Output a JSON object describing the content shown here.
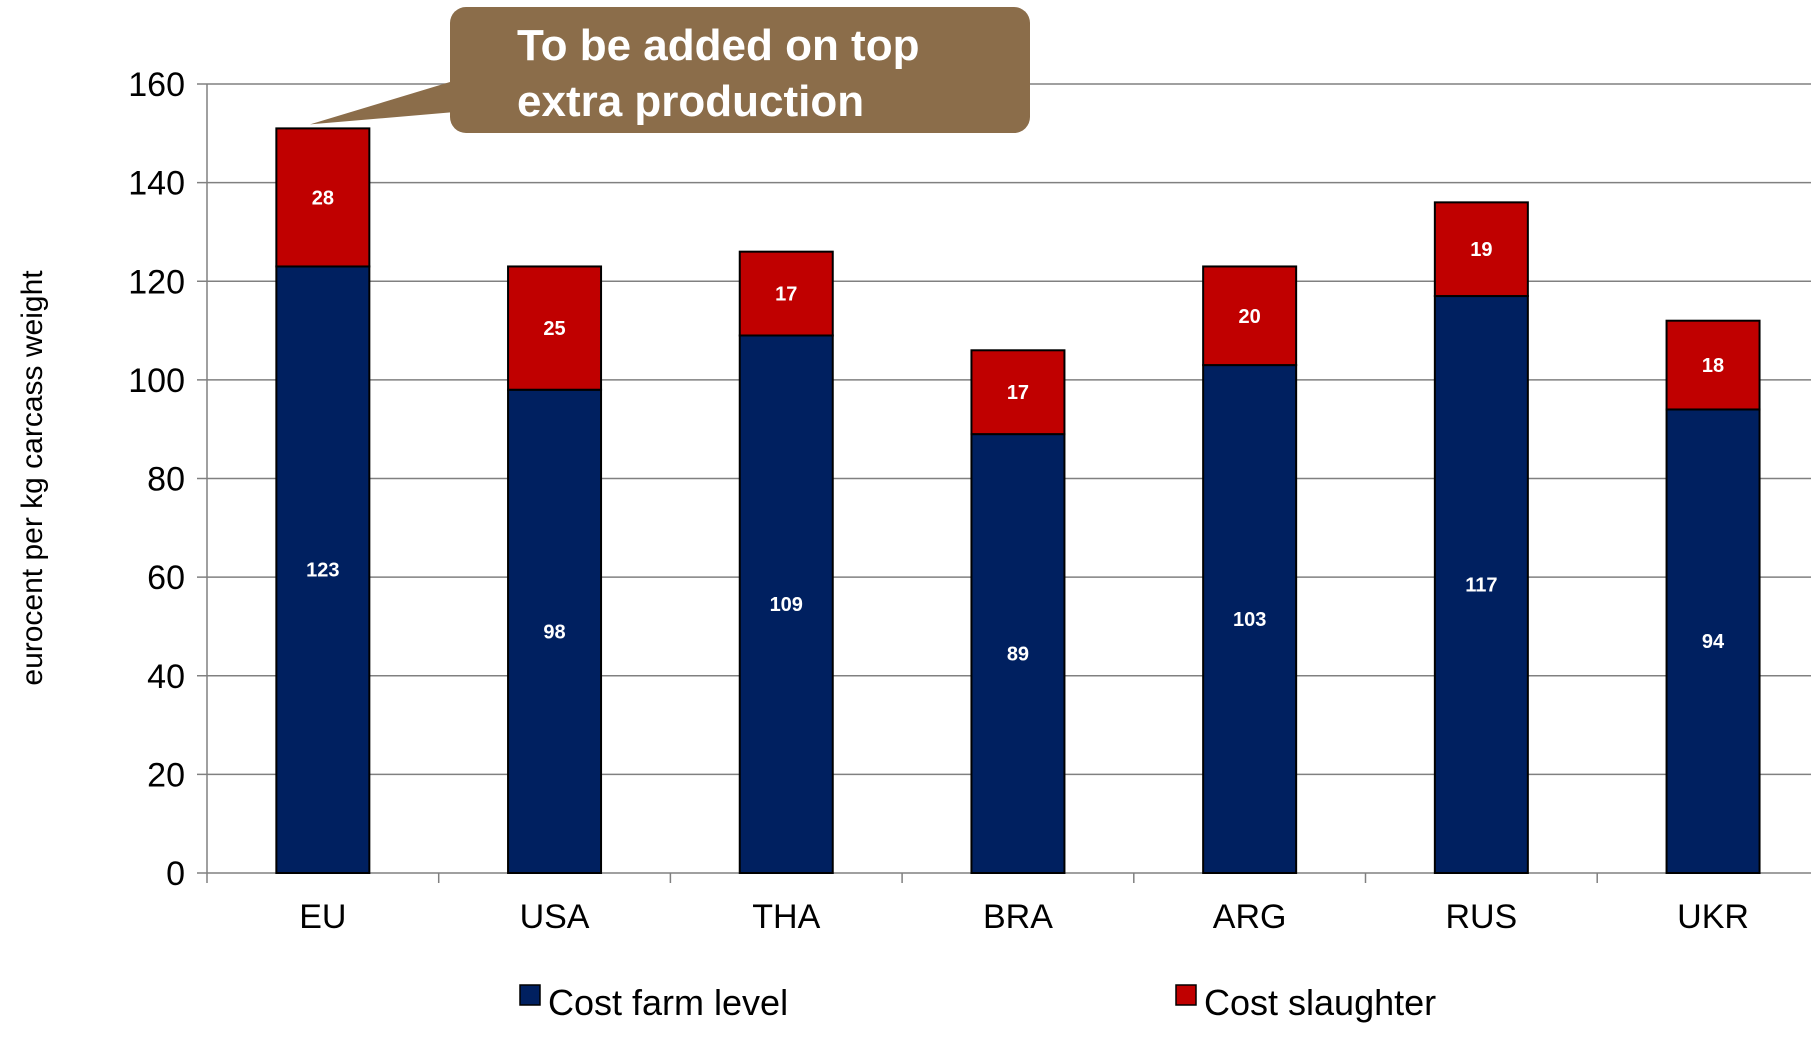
{
  "chart_data": {
    "type": "bar",
    "stacked": true,
    "categories": [
      "EU",
      "USA",
      "THA",
      "BRA",
      "ARG",
      "RUS",
      "UKR"
    ],
    "series": [
      {
        "name": "Cost farm level",
        "values": [
          123,
          98,
          109,
          89,
          103,
          117,
          94
        ],
        "color": "#002060"
      },
      {
        "name": "Cost slaughter",
        "values": [
          28,
          25,
          17,
          17,
          20,
          19,
          18
        ],
        "color": "#C00000"
      }
    ],
    "title": "",
    "xlabel": "",
    "ylabel": "eurocent per kg carcass weight",
    "ylim": [
      0,
      160
    ],
    "yticks": [
      0,
      20,
      40,
      60,
      80,
      100,
      120,
      140,
      160
    ],
    "grid": true,
    "legend": "bottom",
    "annotation": {
      "lines": [
        "To be added on top",
        "extra production"
      ],
      "target_category": "EU",
      "color": "#8B6D4A"
    }
  }
}
